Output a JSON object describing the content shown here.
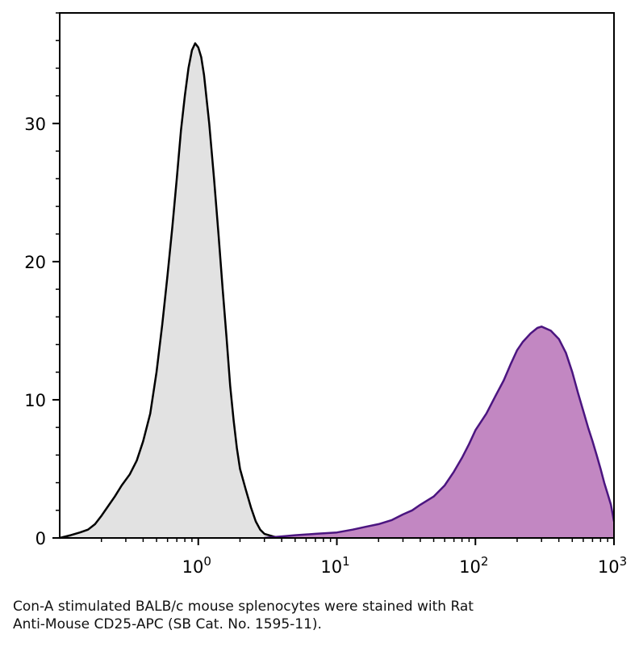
{
  "chart_data": {
    "type": "area",
    "x_scale": "log",
    "xlim": [
      0.1,
      1000
    ],
    "ylim": [
      0,
      38
    ],
    "title": "",
    "xlabel": "",
    "ylabel": "",
    "grid": false,
    "x_ticks": [
      {
        "value": 1,
        "base": "10",
        "exp": "0"
      },
      {
        "value": 10,
        "base": "10",
        "exp": "1"
      },
      {
        "value": 100,
        "base": "10",
        "exp": "2"
      },
      {
        "value": 1000,
        "base": "10",
        "exp": "3"
      }
    ],
    "y_ticks": [
      {
        "value": 0,
        "label": "0"
      },
      {
        "value": 10,
        "label": "10"
      },
      {
        "value": 20,
        "label": "20"
      },
      {
        "value": 30,
        "label": "30"
      }
    ],
    "series": [
      {
        "fill": "#e2e2e2",
        "stroke": "#000000",
        "x": [
          0.1,
          0.12,
          0.14,
          0.16,
          0.18,
          0.2,
          0.22,
          0.25,
          0.28,
          0.32,
          0.36,
          0.4,
          0.45,
          0.5,
          0.55,
          0.6,
          0.65,
          0.7,
          0.75,
          0.8,
          0.85,
          0.9,
          0.95,
          1.0,
          1.05,
          1.1,
          1.2,
          1.3,
          1.4,
          1.5,
          1.6,
          1.7,
          1.8,
          1.9,
          2.0,
          2.2,
          2.4,
          2.6,
          2.8,
          3.0,
          3.5,
          4.0
        ],
        "y": [
          0,
          0.2,
          0.4,
          0.6,
          1.0,
          1.6,
          2.2,
          3.0,
          3.8,
          4.6,
          5.6,
          7.0,
          9.0,
          12.0,
          15.5,
          19.0,
          22.5,
          26.0,
          29.5,
          32.0,
          34.0,
          35.3,
          35.8,
          35.5,
          34.8,
          33.5,
          30.0,
          26.0,
          22.0,
          18.0,
          14.5,
          11.0,
          8.5,
          6.5,
          5.0,
          3.5,
          2.2,
          1.2,
          0.6,
          0.3,
          0.1,
          0
        ]
      },
      {
        "fill": "#c287c2",
        "stroke": "#4b1580",
        "x": [
          3,
          5,
          7,
          10,
          13,
          16,
          20,
          25,
          30,
          35,
          40,
          50,
          60,
          70,
          80,
          90,
          100,
          120,
          140,
          160,
          180,
          200,
          220,
          250,
          280,
          300,
          350,
          400,
          450,
          500,
          550,
          600,
          650,
          700,
          750,
          800,
          850,
          900,
          950,
          1000
        ],
        "y": [
          0,
          0.2,
          0.3,
          0.4,
          0.6,
          0.8,
          1.0,
          1.3,
          1.7,
          2.0,
          2.4,
          3.0,
          3.8,
          4.8,
          5.8,
          6.8,
          7.8,
          9.0,
          10.3,
          11.4,
          12.6,
          13.6,
          14.2,
          14.8,
          15.2,
          15.3,
          15.0,
          14.4,
          13.4,
          12.0,
          10.5,
          9.2,
          8.0,
          7.0,
          6.0,
          5.0,
          4.0,
          3.2,
          2.4,
          1.2
        ]
      }
    ]
  },
  "caption": {
    "line1": "Con-A stimulated BALB/c mouse splenocytes were stained with Rat",
    "line2": "Anti-Mouse CD25-APC (SB Cat. No. 1595-11)."
  }
}
